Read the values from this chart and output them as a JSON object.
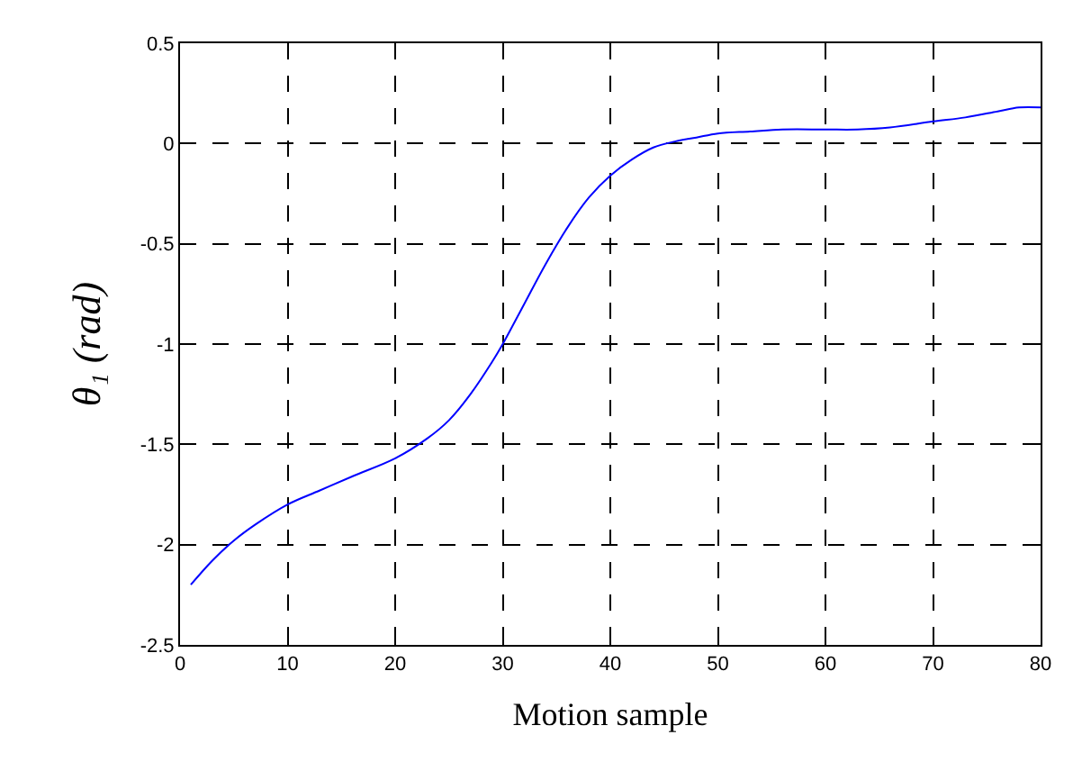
{
  "chart_data": {
    "type": "line",
    "xlabel": "Motion sample",
    "ylabel": "θ₁ (rad)",
    "x": [
      1,
      3,
      5,
      7,
      10,
      13,
      16,
      20,
      23,
      25,
      27,
      29,
      30,
      32,
      34,
      36,
      38,
      40,
      42,
      44,
      46,
      48,
      50,
      53,
      56,
      60,
      63,
      66,
      70,
      73,
      76,
      78,
      80
    ],
    "series": [
      {
        "color": "#0000ff",
        "values": [
          -2.2,
          -2.08,
          -1.98,
          -1.9,
          -1.8,
          -1.73,
          -1.66,
          -1.57,
          -1.47,
          -1.38,
          -1.25,
          -1.09,
          -1.0,
          -0.8,
          -0.6,
          -0.42,
          -0.27,
          -0.16,
          -0.08,
          -0.02,
          0.01,
          0.03,
          0.05,
          0.06,
          0.07,
          0.07,
          0.07,
          0.08,
          0.11,
          0.13,
          0.16,
          0.18,
          0.18
        ]
      }
    ],
    "xlim": [
      0,
      80
    ],
    "ylim": [
      -2.5,
      0.5
    ],
    "xticks": [
      0,
      10,
      20,
      30,
      40,
      50,
      60,
      70,
      80
    ],
    "yticks": [
      -2.5,
      -2,
      -1.5,
      -1,
      -0.5,
      0,
      0.5
    ],
    "grid": true,
    "line_style": "solid",
    "marker": "none",
    "legend": false
  }
}
